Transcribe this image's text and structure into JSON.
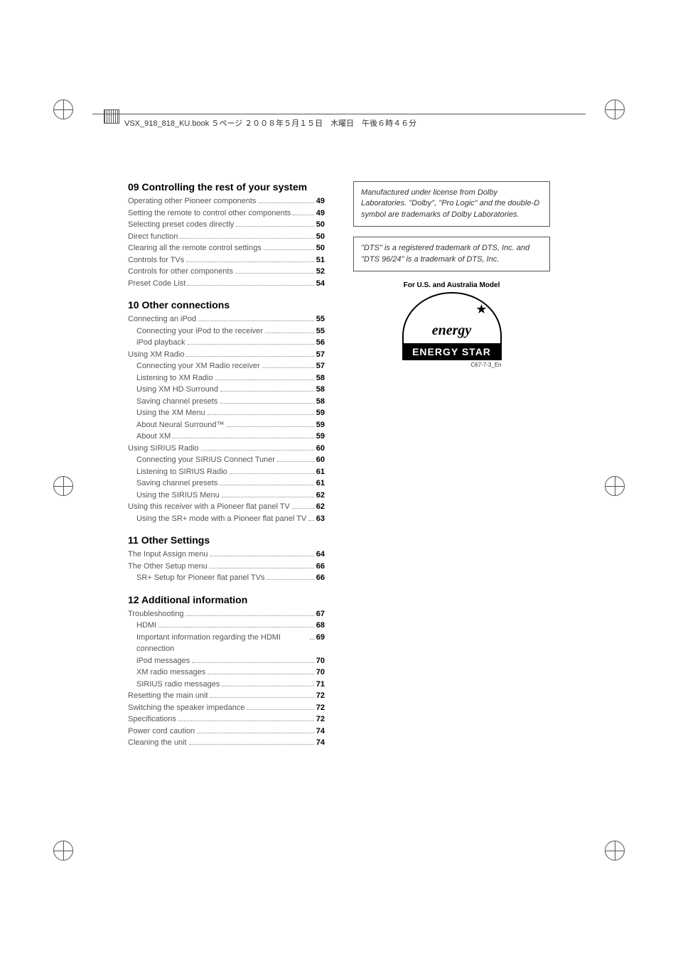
{
  "header_text": "VSX_918_818_KU.book  ５ページ  ２００８年５月１５日　木曜日　午後６時４６分",
  "sections": [
    {
      "title": "09 Controlling the rest of your system",
      "items": [
        {
          "label": "Operating other Pioneer components",
          "page": "49",
          "sub": false
        },
        {
          "label": "Setting the remote to control other components",
          "page": "49",
          "sub": false
        },
        {
          "label": "Selecting preset codes directly",
          "page": "50",
          "sub": false
        },
        {
          "label": "Direct function",
          "page": "50",
          "sub": false
        },
        {
          "label": "Clearing all the remote control settings",
          "page": "50",
          "sub": false
        },
        {
          "label": "Controls for TVs",
          "page": "51",
          "sub": false
        },
        {
          "label": "Controls for other components",
          "page": "52",
          "sub": false
        },
        {
          "label": "Preset Code List",
          "page": "54",
          "sub": false
        }
      ]
    },
    {
      "title": "10 Other connections",
      "items": [
        {
          "label": "Connecting an iPod",
          "page": "55",
          "sub": false
        },
        {
          "label": "Connecting your iPod to the receiver",
          "page": "55",
          "sub": true
        },
        {
          "label": "iPod playback",
          "page": "56",
          "sub": true
        },
        {
          "label": "Using XM Radio",
          "page": "57",
          "sub": false
        },
        {
          "label": "Connecting your XM Radio receiver",
          "page": "57",
          "sub": true
        },
        {
          "label": "Listening to XM Radio",
          "page": "58",
          "sub": true
        },
        {
          "label": "Using XM HD Surround",
          "page": "58",
          "sub": true
        },
        {
          "label": "Saving channel presets",
          "page": "58",
          "sub": true
        },
        {
          "label": "Using the XM Menu",
          "page": "59",
          "sub": true
        },
        {
          "label": "About Neural Surround™",
          "page": "59",
          "sub": true
        },
        {
          "label": "About XM",
          "page": "59",
          "sub": true
        },
        {
          "label": "Using SIRIUS Radio",
          "page": "60",
          "sub": false
        },
        {
          "label": "Connecting your SIRIUS Connect Tuner",
          "page": "60",
          "sub": true
        },
        {
          "label": "Listening to SIRIUS Radio",
          "page": "61",
          "sub": true
        },
        {
          "label": "Saving channel presets",
          "page": "61",
          "sub": true
        },
        {
          "label": "Using the SIRIUS Menu",
          "page": "62",
          "sub": true
        },
        {
          "label": "Using this receiver with a Pioneer flat panel TV",
          "page": "62",
          "sub": false
        },
        {
          "label": "Using the SR+ mode with a Pioneer flat panel TV",
          "page": "63",
          "sub": true
        }
      ]
    },
    {
      "title": "11 Other Settings",
      "items": [
        {
          "label": "The Input Assign menu",
          "page": "64",
          "sub": false
        },
        {
          "label": "The Other Setup menu",
          "page": "66",
          "sub": false
        },
        {
          "label": "SR+ Setup for Pioneer flat panel TVs",
          "page": "66",
          "sub": true
        }
      ]
    },
    {
      "title": "12 Additional information",
      "items": [
        {
          "label": "Troubleshooting",
          "page": "67",
          "sub": false
        },
        {
          "label": "HDMI",
          "page": "68",
          "sub": true
        },
        {
          "label": "Important information regarding the HDMI connection",
          "page": "69",
          "sub": true
        },
        {
          "label": "iPod messages",
          "page": "70",
          "sub": true
        },
        {
          "label": "XM radio messages",
          "page": "70",
          "sub": true
        },
        {
          "label": "SIRIUS radio messages",
          "page": "71",
          "sub": true
        },
        {
          "label": "Resetting the main unit",
          "page": "72",
          "sub": false
        },
        {
          "label": "Switching the speaker impedance",
          "page": "72",
          "sub": false
        },
        {
          "label": "Specifications",
          "page": "72",
          "sub": false
        },
        {
          "label": "Power cord caution",
          "page": "74",
          "sub": false
        },
        {
          "label": "Cleaning the unit",
          "page": "74",
          "sub": false
        }
      ]
    }
  ],
  "dolby_notice": "Manufactured under license from Dolby Laboratories. \"Dolby\", \"Pro Logic\" and the double-D symbol are trademarks of Dolby Laboratories.",
  "dts_notice": "\"DTS\" is a registered trademark of DTS, Inc. and \"DTS 96/24\" is a trademark of DTS, Inc.",
  "model_label": "For U.S. and Australia Model",
  "energy_script": "energy",
  "energy_label": "ENERGY STAR",
  "energy_code": "C67-7-3_En"
}
